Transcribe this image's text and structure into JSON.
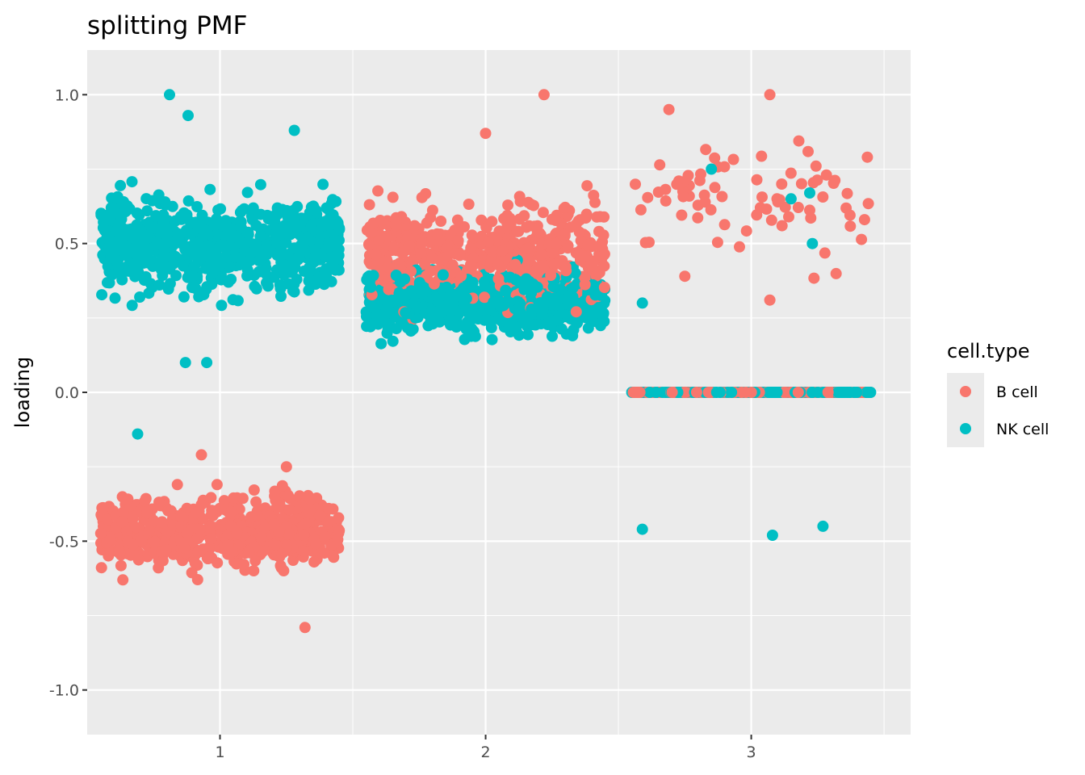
{
  "chart_data": {
    "type": "scatter",
    "title": "splitting PMF",
    "xlabel": "",
    "ylabel": "loading",
    "x_categories": [
      "1",
      "2",
      "3"
    ],
    "xlim": [
      0.5,
      3.6
    ],
    "ylim": [
      -1.15,
      1.15
    ],
    "y_ticks": [
      1.0,
      0.5,
      0.0,
      -0.5,
      -1.0
    ],
    "y_tick_labels": [
      "1.0",
      "0.5",
      "0.0",
      "-0.5",
      "-1.0"
    ],
    "jitter_width": 0.45,
    "background": "#ebebeb",
    "grid": true,
    "legend": {
      "title": "cell.type",
      "position": "right"
    },
    "series": [
      {
        "name": "B cell",
        "color": "#f8766d",
        "clusters": [
          {
            "x": 1,
            "y_center": -0.47,
            "y_spread": 0.1,
            "count": 700
          },
          {
            "x": 2,
            "y_center": 0.47,
            "y_spread": 0.14,
            "count": 520
          },
          {
            "x": 3,
            "y_center": 0.0,
            "y_spread": 0.0,
            "count": 160
          },
          {
            "x": 3,
            "y_center": 0.65,
            "y_spread": 0.17,
            "count": 75
          }
        ],
        "notable_points": [
          {
            "x": 1.32,
            "y": -0.79
          },
          {
            "x": 0.93,
            "y": -0.21
          },
          {
            "x": 1.25,
            "y": -0.25
          },
          {
            "x": 2.22,
            "y": 1.0
          },
          {
            "x": 2.0,
            "y": 0.87
          },
          {
            "x": 3.07,
            "y": 1.0
          },
          {
            "x": 2.69,
            "y": 0.95
          },
          {
            "x": 3.07,
            "y": 0.31
          },
          {
            "x": 2.75,
            "y": 0.39
          }
        ]
      },
      {
        "name": "NK cell",
        "color": "#00bfc4",
        "clusters": [
          {
            "x": 1,
            "y_center": 0.5,
            "y_spread": 0.13,
            "count": 800
          },
          {
            "x": 2,
            "y_center": 0.3,
            "y_spread": 0.09,
            "count": 600
          },
          {
            "x": 3,
            "y_center": 0.0,
            "y_spread": 0.0,
            "count": 220
          }
        ],
        "notable_points": [
          {
            "x": 0.81,
            "y": 1.0
          },
          {
            "x": 0.88,
            "y": 0.93
          },
          {
            "x": 1.28,
            "y": 0.88
          },
          {
            "x": 0.87,
            "y": 0.1
          },
          {
            "x": 0.95,
            "y": 0.1
          },
          {
            "x": 0.69,
            "y": -0.14
          },
          {
            "x": 2.85,
            "y": 0.75
          },
          {
            "x": 3.15,
            "y": 0.65
          },
          {
            "x": 3.22,
            "y": 0.67
          },
          {
            "x": 3.23,
            "y": 0.5
          },
          {
            "x": 2.59,
            "y": 0.3
          },
          {
            "x": 2.59,
            "y": -0.46
          },
          {
            "x": 3.08,
            "y": -0.48
          },
          {
            "x": 3.27,
            "y": -0.45
          }
        ]
      }
    ]
  }
}
